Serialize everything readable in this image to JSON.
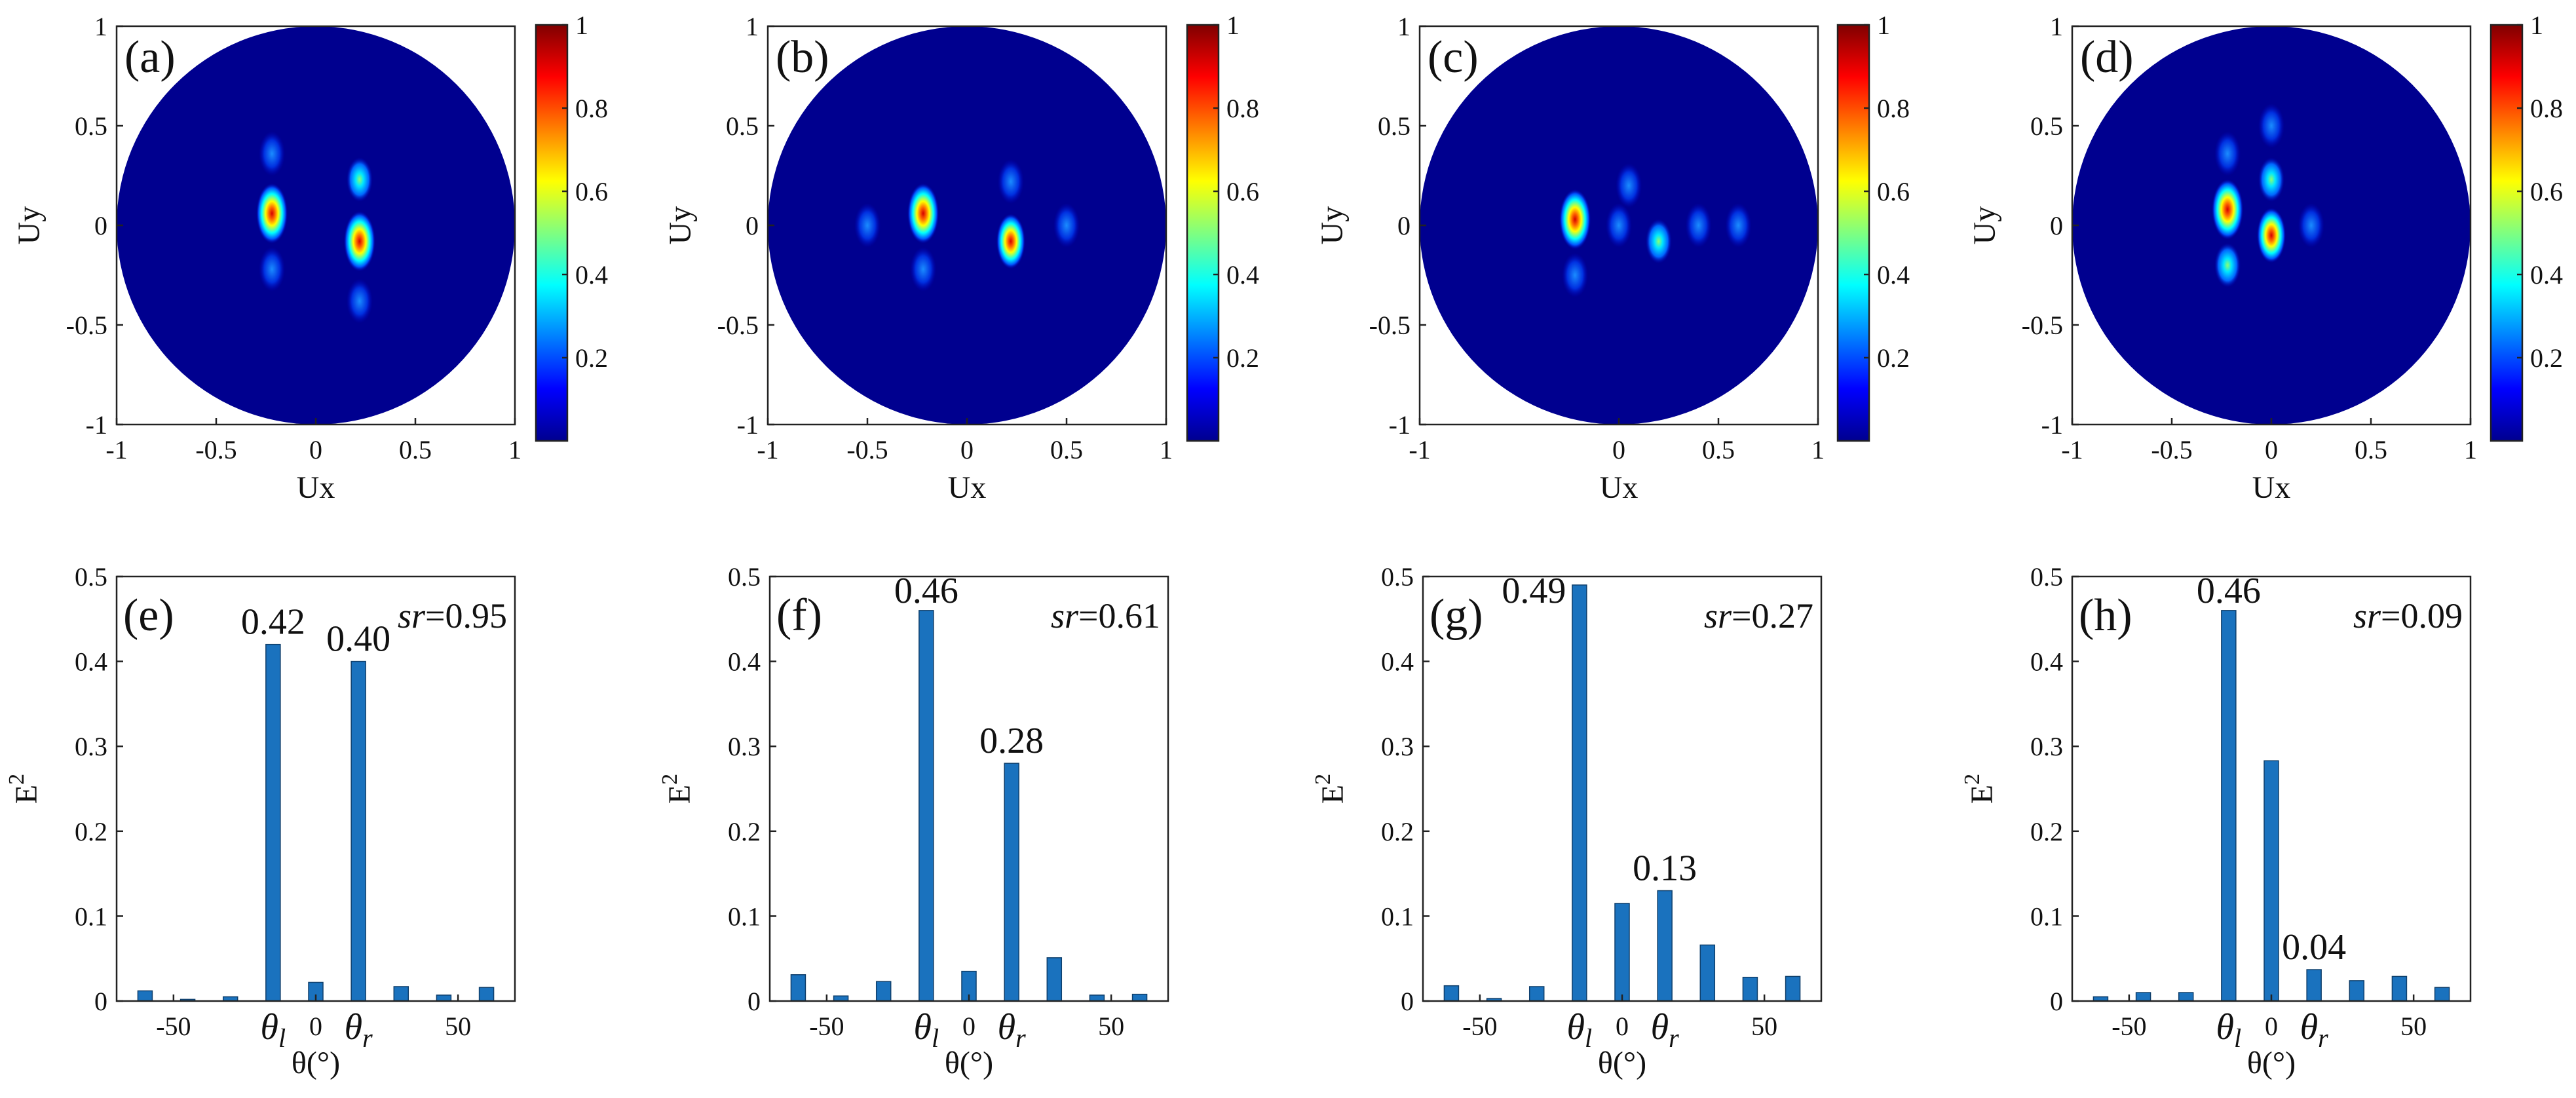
{
  "chart_data": [
    {
      "type": "heatmap",
      "label": "(a)",
      "xlabel": "Ux",
      "ylabel": "Uy",
      "xlim": [
        -1,
        1
      ],
      "ylim": [
        -1,
        1
      ],
      "xticks": [
        "-1",
        "-0.5",
        "0",
        "0.5",
        "1"
      ],
      "yticks": [
        "-1",
        "-0.5",
        "0",
        "0.5",
        "1"
      ],
      "colorbar": {
        "range": [
          0,
          1
        ],
        "ticks": [
          "0.2",
          "0.4",
          "0.6",
          "0.8",
          "1"
        ]
      },
      "peaks": [
        {
          "ux": -0.22,
          "uy": 0.06,
          "v": 1.0
        },
        {
          "ux": 0.22,
          "uy": -0.08,
          "v": 0.95
        },
        {
          "ux": 0.22,
          "uy": 0.23,
          "v": 0.3
        },
        {
          "ux": -0.22,
          "uy": -0.22,
          "v": 0.2
        },
        {
          "ux": -0.22,
          "uy": 0.36,
          "v": 0.1
        },
        {
          "ux": 0.22,
          "uy": -0.38,
          "v": 0.1
        }
      ]
    },
    {
      "type": "heatmap",
      "label": "(b)",
      "xlabel": "Ux",
      "ylabel": "Uy",
      "xlim": [
        -1,
        1
      ],
      "ylim": [
        -1,
        1
      ],
      "xticks": [
        "-1",
        "-0.5",
        "0",
        "0.5",
        "1"
      ],
      "yticks": [
        "-1",
        "-0.5",
        "0",
        "0.5",
        "1"
      ],
      "colorbar": {
        "range": [
          0,
          1
        ],
        "ticks": [
          "0.2",
          "0.4",
          "0.6",
          "0.8",
          "1"
        ]
      },
      "peaks": [
        {
          "ux": -0.22,
          "uy": 0.06,
          "v": 1.0
        },
        {
          "ux": 0.22,
          "uy": -0.08,
          "v": 0.6
        },
        {
          "ux": 0.22,
          "uy": 0.22,
          "v": 0.2
        },
        {
          "ux": -0.22,
          "uy": -0.22,
          "v": 0.2
        },
        {
          "ux": -0.5,
          "uy": 0.0,
          "v": 0.12
        },
        {
          "ux": 0.5,
          "uy": 0.0,
          "v": 0.1
        }
      ]
    },
    {
      "type": "heatmap",
      "label": "(c)",
      "xlabel": "Ux",
      "ylabel": "Uy",
      "xlim": [
        -1,
        1
      ],
      "ylim": [
        -1,
        1
      ],
      "xticks": [
        "-1",
        "0",
        "0.5",
        "1"
      ],
      "yticks": [
        "-1",
        "-0.5",
        "0",
        "0.5",
        "1"
      ],
      "colorbar": {
        "range": [
          0,
          1
        ],
        "ticks": [
          "0.2",
          "0.4",
          "0.6",
          "0.8",
          "1"
        ]
      },
      "peaks": [
        {
          "ux": -0.22,
          "uy": 0.03,
          "v": 1.0
        },
        {
          "ux": 0.2,
          "uy": -0.08,
          "v": 0.3
        },
        {
          "ux": 0.0,
          "uy": 0.0,
          "v": 0.2
        },
        {
          "ux": 0.05,
          "uy": 0.2,
          "v": 0.15
        },
        {
          "ux": -0.22,
          "uy": -0.25,
          "v": 0.2
        },
        {
          "ux": 0.4,
          "uy": 0.0,
          "v": 0.15
        },
        {
          "ux": 0.6,
          "uy": 0.0,
          "v": 0.12
        }
      ]
    },
    {
      "type": "heatmap",
      "label": "(d)",
      "xlabel": "Ux",
      "ylabel": "Uy",
      "xlim": [
        -1,
        1
      ],
      "ylim": [
        -1,
        1
      ],
      "xticks": [
        "-1",
        "-0.5",
        "0",
        "0.5",
        "1"
      ],
      "yticks": [
        "-1",
        "-0.5",
        "0",
        "0.5",
        "1"
      ],
      "colorbar": {
        "range": [
          0,
          1
        ],
        "ticks": [
          "0.2",
          "0.4",
          "0.6",
          "0.8",
          "1"
        ]
      },
      "peaks": [
        {
          "ux": -0.22,
          "uy": 0.08,
          "v": 1.0
        },
        {
          "ux": 0.0,
          "uy": -0.05,
          "v": 0.65
        },
        {
          "ux": -0.22,
          "uy": -0.2,
          "v": 0.35
        },
        {
          "ux": 0.0,
          "uy": 0.23,
          "v": 0.3
        },
        {
          "ux": -0.22,
          "uy": 0.36,
          "v": 0.15
        },
        {
          "ux": 0.0,
          "uy": 0.5,
          "v": 0.12
        },
        {
          "ux": 0.2,
          "uy": 0.0,
          "v": 0.12
        }
      ]
    },
    {
      "type": "bar",
      "label": "(e)",
      "xlabel": "θ(°)",
      "ylabel": "E",
      "ylabel_sup": "2",
      "ylim": [
        0,
        0.5
      ],
      "xlim": [
        -70,
        70
      ],
      "yticks": [
        "0",
        "0.1",
        "0.2",
        "0.3",
        "0.4",
        "0.5"
      ],
      "xticks": [
        "-50",
        "0",
        "50"
      ],
      "x": [
        -60,
        -45,
        -30,
        -15,
        0,
        15,
        30,
        45,
        60
      ],
      "values": [
        0.012,
        0.002,
        0.005,
        0.42,
        0.022,
        0.4,
        0.017,
        0.007,
        0.016
      ],
      "theta_l": "θ",
      "theta_l_sub": "l",
      "theta_r": "θ",
      "theta_r_sub": "r",
      "annotations": [
        {
          "x": -15,
          "text": "0.42"
        },
        {
          "x": 15,
          "text": "0.40"
        }
      ],
      "sr_name": "sr",
      "sr_value": "=0.95"
    },
    {
      "type": "bar",
      "label": "(f)",
      "xlabel": "θ(°)",
      "ylabel": "E",
      "ylabel_sup": "2",
      "ylim": [
        0,
        0.5
      ],
      "xlim": [
        -70,
        70
      ],
      "yticks": [
        "0",
        "0.1",
        "0.2",
        "0.3",
        "0.4",
        "0.5"
      ],
      "xticks": [
        "-50",
        "0",
        "50"
      ],
      "x": [
        -60,
        -45,
        -30,
        -15,
        0,
        15,
        30,
        45,
        60
      ],
      "values": [
        0.031,
        0.006,
        0.023,
        0.46,
        0.035,
        0.28,
        0.051,
        0.007,
        0.008
      ],
      "theta_l": "θ",
      "theta_l_sub": "l",
      "theta_r": "θ",
      "theta_r_sub": "r",
      "annotations": [
        {
          "x": -15,
          "text": "0.46"
        },
        {
          "x": 15,
          "text": "0.28"
        }
      ],
      "sr_name": "sr",
      "sr_value": "=0.61"
    },
    {
      "type": "bar",
      "label": "(g)",
      "xlabel": "θ(°)",
      "ylabel": "E",
      "ylabel_sup": "2",
      "ylim": [
        0,
        0.5
      ],
      "xlim": [
        -70,
        70
      ],
      "yticks": [
        "0",
        "0.1",
        "0.2",
        "0.3",
        "0.4",
        "0.5"
      ],
      "xticks": [
        "-50",
        "0",
        "50"
      ],
      "x": [
        -60,
        -45,
        -30,
        -15,
        0,
        15,
        30,
        45,
        60
      ],
      "values": [
        0.018,
        0.003,
        0.017,
        0.49,
        0.115,
        0.13,
        0.066,
        0.028,
        0.029
      ],
      "theta_l": "θ",
      "theta_l_sub": "l",
      "theta_r": "θ",
      "theta_r_sub": "r",
      "annotations": [
        {
          "x": -31,
          "text": "0.49"
        },
        {
          "x": 15,
          "text": "0.13"
        }
      ],
      "sr_name": "sr",
      "sr_value": "=0.27"
    },
    {
      "type": "bar",
      "label": "(h)",
      "xlabel": "θ(°)",
      "ylabel": "E",
      "ylabel_sup": "2",
      "ylim": [
        0,
        0.5
      ],
      "xlim": [
        -70,
        70
      ],
      "yticks": [
        "0",
        "0.1",
        "0.2",
        "0.3",
        "0.4",
        "0.5"
      ],
      "xticks": [
        "-50",
        "0",
        "50"
      ],
      "x": [
        -60,
        -45,
        -30,
        -15,
        0,
        15,
        30,
        45,
        60
      ],
      "values": [
        0.005,
        0.01,
        0.01,
        0.46,
        0.283,
        0.037,
        0.024,
        0.029,
        0.016
      ],
      "theta_l": "θ",
      "theta_l_sub": "l",
      "theta_r": "θ",
      "theta_r_sub": "r",
      "annotations": [
        {
          "x": -15,
          "text": "0.46"
        },
        {
          "x": 15,
          "text": "0.04"
        }
      ],
      "sr_name": "sr",
      "sr_value": "=0.09"
    }
  ]
}
